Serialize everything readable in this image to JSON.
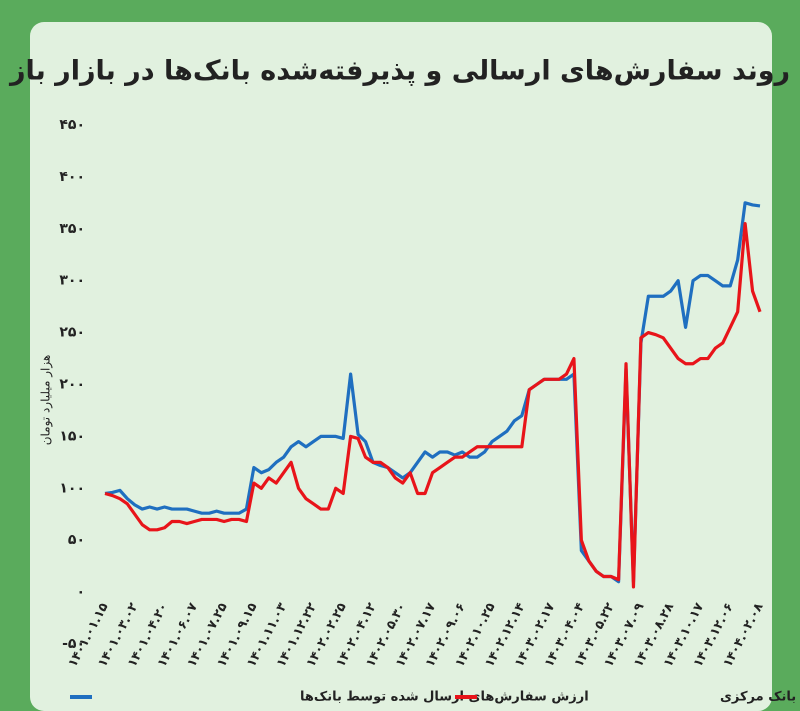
{
  "chart_data": {
    "type": "line",
    "title": "روند سفارش‌های ارسالی و پذیرفته‌شده بانک‌ها در بازار باز",
    "y_label": "هزار میلیارد تومان",
    "categories": [
      "۱۴۰۱.۰۱.۱۵",
      null,
      null,
      null,
      "۱۴۰۱.۰۳.۰۲",
      null,
      null,
      null,
      "۱۴۰۱.۰۴.۲۰",
      null,
      null,
      null,
      "۱۴۰۱.۰۶.۰۷",
      null,
      null,
      null,
      "۱۴۰۱.۰۷.۲۵",
      null,
      null,
      null,
      "۱۴۰۱.۰۹.۱۵",
      null,
      null,
      null,
      "۱۴۰۱.۱۱.۰۳",
      null,
      null,
      null,
      "۱۴۰۱.۱۲.۲۲",
      null,
      null,
      null,
      "۱۴۰۲.۰۲.۲۵",
      null,
      null,
      null,
      "۱۴۰۲.۰۴.۱۲",
      null,
      null,
      null,
      "۱۴۰۲.۰۵.۳۰",
      null,
      null,
      null,
      "۱۴۰۲.۰۷.۱۷",
      null,
      null,
      null,
      "۱۴۰۲.۰۹.۰۶",
      null,
      null,
      null,
      "۱۴۰۲.۱۰.۲۵",
      null,
      null,
      null,
      "۱۴۰۲.۱۲.۱۴",
      null,
      null,
      null,
      "۱۴۰۳.۰۲.۱۷",
      null,
      null,
      null,
      "۱۴۰۳.۰۴.۰۴",
      null,
      null,
      null,
      "۱۴۰۳.۰۵.۲۲",
      null,
      null,
      null,
      "۱۴۰۳.۰۷.۰۹",
      null,
      null,
      null,
      "۱۴۰۳.۰۸.۲۸",
      null,
      null,
      null,
      "۱۴۰۳.۱۰.۱۷",
      null,
      null,
      null,
      "۱۴۰۳.۱۲.۰۶",
      null,
      null,
      null,
      "۱۴۰۴.۰۲.۰۸"
    ],
    "series": [
      {
        "name": "ارزش سفارش‌های ارسال شده توسط بانک‌ها",
        "color": "#1f6fc0",
        "values": [
          95,
          96,
          98,
          90,
          84,
          80,
          82,
          80,
          82,
          80,
          80,
          80,
          78,
          76,
          76,
          78,
          76,
          76,
          76,
          80,
          120,
          115,
          118,
          125,
          130,
          140,
          145,
          140,
          145,
          150,
          150,
          150,
          148,
          210,
          152,
          145,
          125,
          122,
          120,
          115,
          110,
          115,
          125,
          135,
          130,
          135,
          135,
          132,
          135,
          130,
          130,
          135,
          145,
          150,
          155,
          165,
          170,
          195,
          200,
          205,
          205,
          205,
          205,
          210,
          40,
          30,
          20,
          15,
          15,
          10,
          215,
          10,
          240,
          285,
          285,
          285,
          290,
          300,
          255,
          300,
          305,
          305,
          300,
          295,
          295,
          320,
          375,
          373,
          372
        ]
      },
      {
        "name": "ارزش سفارش‌های پذیرفته شده توسط بانک مرکزی",
        "color": "#e8141a",
        "values": [
          95,
          93,
          90,
          85,
          75,
          65,
          60,
          60,
          62,
          68,
          68,
          66,
          68,
          70,
          70,
          70,
          68,
          70,
          70,
          68,
          105,
          100,
          110,
          105,
          115,
          125,
          100,
          90,
          85,
          80,
          80,
          100,
          95,
          150,
          148,
          130,
          125,
          125,
          120,
          110,
          105,
          115,
          95,
          95,
          115,
          120,
          125,
          130,
          130,
          135,
          140,
          140,
          140,
          140,
          140,
          140,
          140,
          195,
          200,
          205,
          205,
          205,
          210,
          225,
          50,
          30,
          20,
          15,
          15,
          12,
          220,
          5,
          245,
          250,
          248,
          245,
          235,
          225,
          220,
          220,
          225,
          225,
          235,
          240,
          255,
          270,
          355,
          290,
          270
        ]
      }
    ],
    "ylim": [
      -50,
      450
    ],
    "yticks": [
      {
        "value": -50,
        "label": "-۵۰"
      },
      {
        "value": 0,
        "label": "۰"
      },
      {
        "value": 50,
        "label": "۵۰"
      },
      {
        "value": 100,
        "label": "۱۰۰"
      },
      {
        "value": 150,
        "label": "۱۵۰"
      },
      {
        "value": 200,
        "label": "۲۰۰"
      },
      {
        "value": 250,
        "label": "۲۵۰"
      },
      {
        "value": 300,
        "label": "۳۰۰"
      },
      {
        "value": 350,
        "label": "۳۵۰"
      },
      {
        "value": 400,
        "label": "۴۰۰"
      },
      {
        "value": 450,
        "label": "۴۵۰"
      }
    ],
    "grid": false,
    "legend": "bottom"
  }
}
